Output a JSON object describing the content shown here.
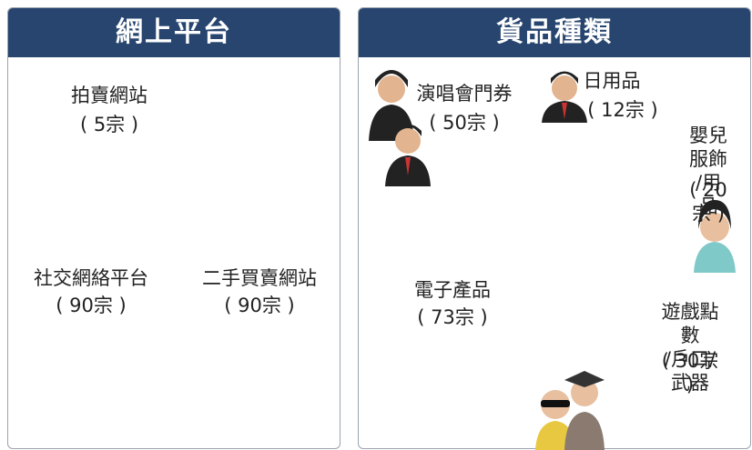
{
  "chart_data": [
    {
      "type": "pie",
      "title": "網上平台",
      "categories": [
        "拍賣網站",
        "二手買賣網站",
        "社交網絡平台"
      ],
      "values": [
        5,
        90,
        90
      ],
      "value_labels": [
        "( 5宗 )",
        "( 90宗 )",
        "( 90宗 )"
      ],
      "colors": [
        "#2aa7cf",
        "#e8875b",
        "#a3cfe1"
      ]
    },
    {
      "type": "pie",
      "title": "貨品種類",
      "categories": [
        "演唱會門券",
        "日用品",
        "嬰兒服飾\n/用品",
        "遊戲點數\n/戶口/武器",
        "電子產品"
      ],
      "values": [
        50,
        12,
        20,
        30,
        73
      ],
      "value_labels": [
        "( 50宗 )",
        "( 12宗 )",
        "( 20宗 )",
        "( 30宗 )",
        "( 73宗 )"
      ],
      "colors": [
        "#2a8fba",
        "#c8423c",
        "#ebbcaa",
        "#e0cd58",
        "#97b56c"
      ]
    }
  ]
}
